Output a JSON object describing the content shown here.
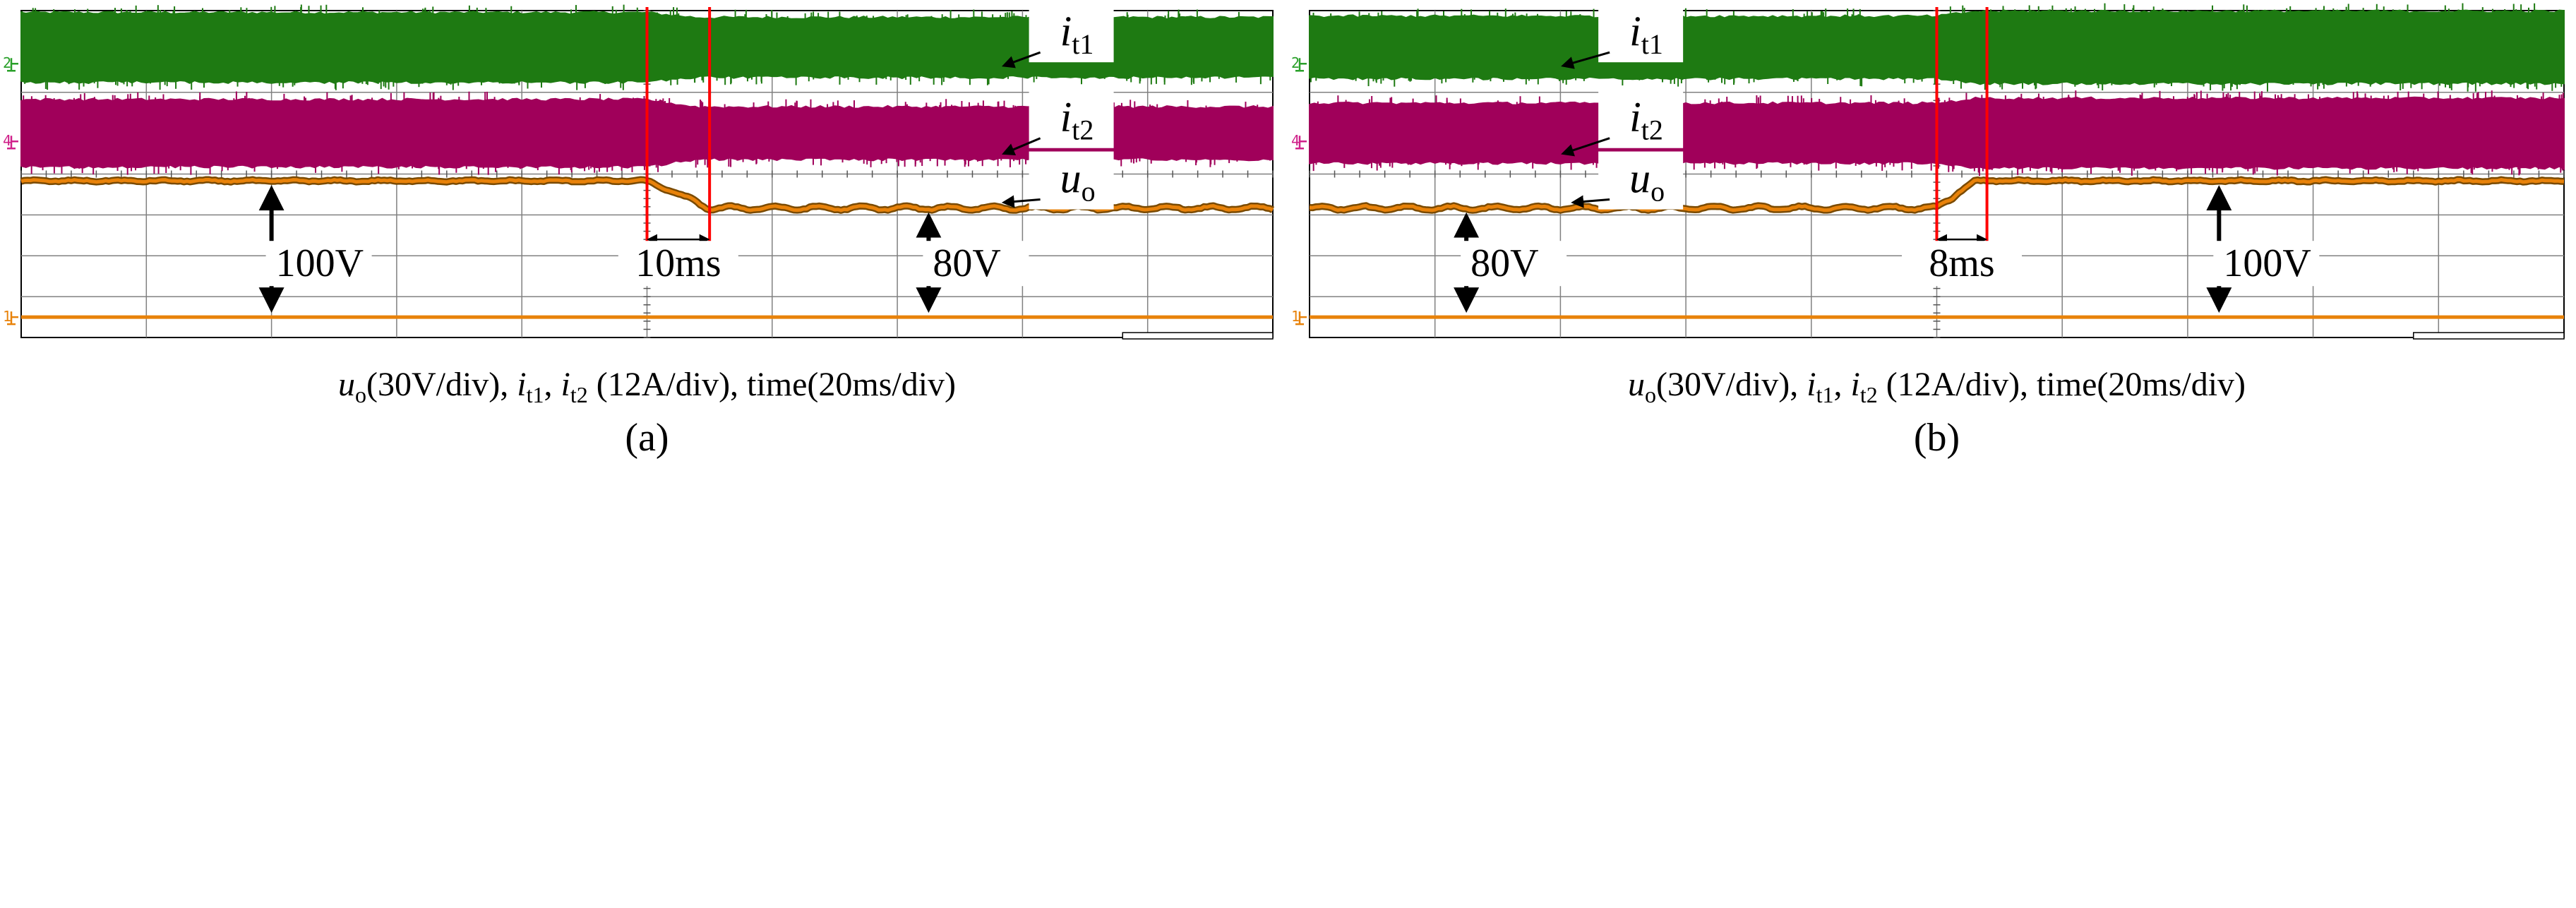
{
  "figure": {
    "background": "#ffffff"
  },
  "colors": {
    "it1": "#1e7a12",
    "it2": "#a0005a",
    "uo": "#e8820a",
    "ground_ch1": "#e8820a",
    "ground_ch2": "#2aa02a",
    "ground_ch4": "#d0208a",
    "marker": "#ff0000",
    "grid": "#808080",
    "arrow": "#000000"
  },
  "chart_data": [
    {
      "type": "line",
      "panel_label": "(a)",
      "caption": {
        "uo_sym": "u",
        "uo_sub": "o",
        "uo_scale": "(30V/div), ",
        "it1_sym": "i",
        "it1_sub": "t1",
        "sep": ", ",
        "it2_sym": "i",
        "it2_sub": "t2",
        "rest": " (12A/div), time(20ms/div)"
      },
      "grid": {
        "x_divisions": 10,
        "y_divisions": 8,
        "on": true
      },
      "x_axis": {
        "unit": "ms",
        "per_div": 20,
        "range": [
          0,
          200
        ]
      },
      "channel_markers": {
        "ch2": "2",
        "ch4": "4",
        "ch1": "1"
      },
      "series": [
        {
          "name": "it1",
          "label_sym": "i",
          "label_sub": "t1",
          "envelope_divs": [
            [
              0,
              1.35
            ],
            [
              100,
              1.35
            ],
            [
              108,
              1.15
            ],
            [
              200,
              1.15
            ]
          ]
        },
        {
          "name": "it2",
          "label_sym": "i",
          "label_sub": "t2",
          "envelope_divs": [
            [
              0,
              1.3
            ],
            [
              100,
              1.3
            ],
            [
              108,
              1.0
            ],
            [
              200,
              1.0
            ]
          ]
        },
        {
          "name": "uo",
          "label_sym": "u",
          "label_sub": "o",
          "unit": "V",
          "x": [
            0,
            100,
            110,
            200
          ],
          "y": [
            100,
            100,
            80,
            80
          ]
        }
      ],
      "transition": {
        "start_ms": 100,
        "end_ms": 110,
        "duration_label": "10ms"
      },
      "annotations": [
        {
          "text": "100V",
          "at_ms": 40,
          "value_from": 0,
          "value_to": 100
        },
        {
          "text": "80V",
          "at_ms": 145,
          "value_from": 0,
          "value_to": 80
        }
      ]
    },
    {
      "type": "line",
      "panel_label": "(b)",
      "caption": {
        "uo_sym": "u",
        "uo_sub": "o",
        "uo_scale": "(30V/div), ",
        "it1_sym": "i",
        "it1_sub": "t1",
        "sep": ", ",
        "it2_sym": "i",
        "it2_sub": "t2",
        "rest": " (12A/div), time(20ms/div)"
      },
      "grid": {
        "x_divisions": 10,
        "y_divisions": 8,
        "on": true
      },
      "x_axis": {
        "unit": "ms",
        "per_div": 20,
        "range": [
          0,
          200
        ]
      },
      "channel_markers": {
        "ch2": "2",
        "ch4": "4",
        "ch1": "1"
      },
      "series": [
        {
          "name": "it1",
          "label_sym": "i",
          "label_sub": "t1",
          "envelope_divs": [
            [
              0,
              1.2
            ],
            [
              100,
              1.2
            ],
            [
              106,
              1.4
            ],
            [
              200,
              1.4
            ]
          ]
        },
        {
          "name": "it2",
          "label_sym": "i",
          "label_sub": "t2",
          "envelope_divs": [
            [
              0,
              1.15
            ],
            [
              100,
              1.15
            ],
            [
              106,
              1.35
            ],
            [
              200,
              1.35
            ]
          ]
        },
        {
          "name": "uo",
          "label_sym": "u",
          "label_sub": "o",
          "unit": "V",
          "x": [
            0,
            100,
            106,
            200
          ],
          "y": [
            80,
            80,
            100,
            100
          ]
        }
      ],
      "transition": {
        "start_ms": 100,
        "end_ms": 108,
        "duration_label": "8ms"
      },
      "annotations": [
        {
          "text": "80V",
          "at_ms": 25,
          "value_from": 0,
          "value_to": 80
        },
        {
          "text": "100V",
          "at_ms": 145,
          "value_from": 0,
          "value_to": 100
        }
      ]
    }
  ]
}
